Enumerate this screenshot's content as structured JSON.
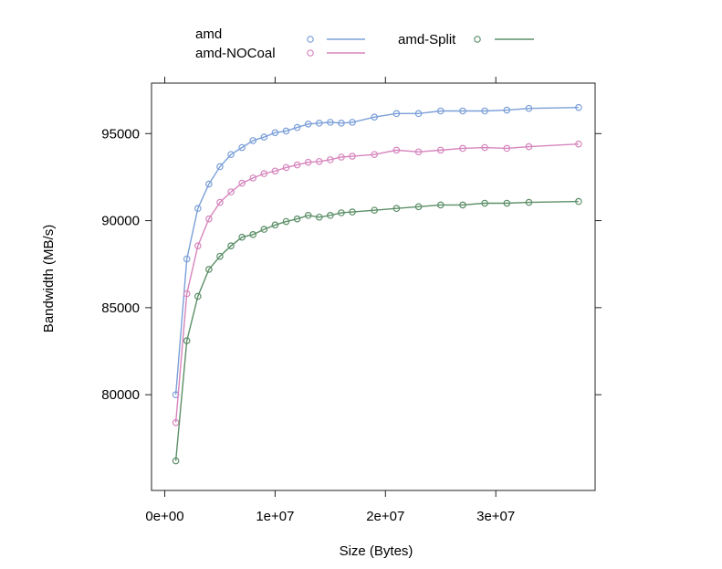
{
  "chart_data": {
    "type": "line",
    "title": "",
    "xlabel": "Size (Bytes)",
    "ylabel": "Bandwidth (MB/s)",
    "xlim": [
      -1200000.0,
      39000000.0
    ],
    "ylim": [
      74500,
      97900
    ],
    "xticks": [
      0,
      10000000,
      20000000,
      30000000
    ],
    "xtick_labels": [
      "0e+00",
      "1e+07",
      "2e+07",
      "3e+07"
    ],
    "yticks": [
      80000,
      85000,
      90000,
      95000
    ],
    "ytick_labels": [
      "80000",
      "85000",
      "90000",
      "95000"
    ],
    "legend_position": "top",
    "x": [
      1000000,
      2000000,
      3000000,
      4000000,
      5000000,
      6000000,
      7000000,
      8000000,
      9000000,
      10000000,
      11000000,
      12000000,
      13000000,
      14000000,
      15000000,
      16000000,
      17000000,
      19000000,
      21000000,
      23000000,
      25000000,
      27000000,
      29000000,
      31000000,
      33000000,
      37500000
    ],
    "series": [
      {
        "name": "amd",
        "color": "#7b9fd8",
        "values": [
          80000,
          87800,
          90700,
          92100,
          93100,
          93800,
          94200,
          94600,
          94800,
          95050,
          95150,
          95350,
          95550,
          95600,
          95650,
          95600,
          95650,
          95950,
          96150,
          96150,
          96300,
          96300,
          96300,
          96350,
          96450,
          96500
        ]
      },
      {
        "name": "amd-NOCoal",
        "color": "#d685bd",
        "values": [
          78400,
          85800,
          88550,
          90100,
          91050,
          91650,
          92150,
          92450,
          92700,
          92850,
          93050,
          93200,
          93350,
          93400,
          93500,
          93650,
          93700,
          93800,
          94050,
          93950,
          94050,
          94150,
          94200,
          94150,
          94250,
          94400
        ]
      },
      {
        "name": "amd-Split",
        "color": "#5c8f68",
        "values": [
          76200,
          83100,
          85650,
          87200,
          87950,
          88550,
          89050,
          89200,
          89500,
          89750,
          89950,
          90100,
          90300,
          90200,
          90300,
          90450,
          90500,
          90600,
          90700,
          90800,
          90900,
          90900,
          91000,
          91000,
          91050,
          91100
        ]
      }
    ]
  }
}
